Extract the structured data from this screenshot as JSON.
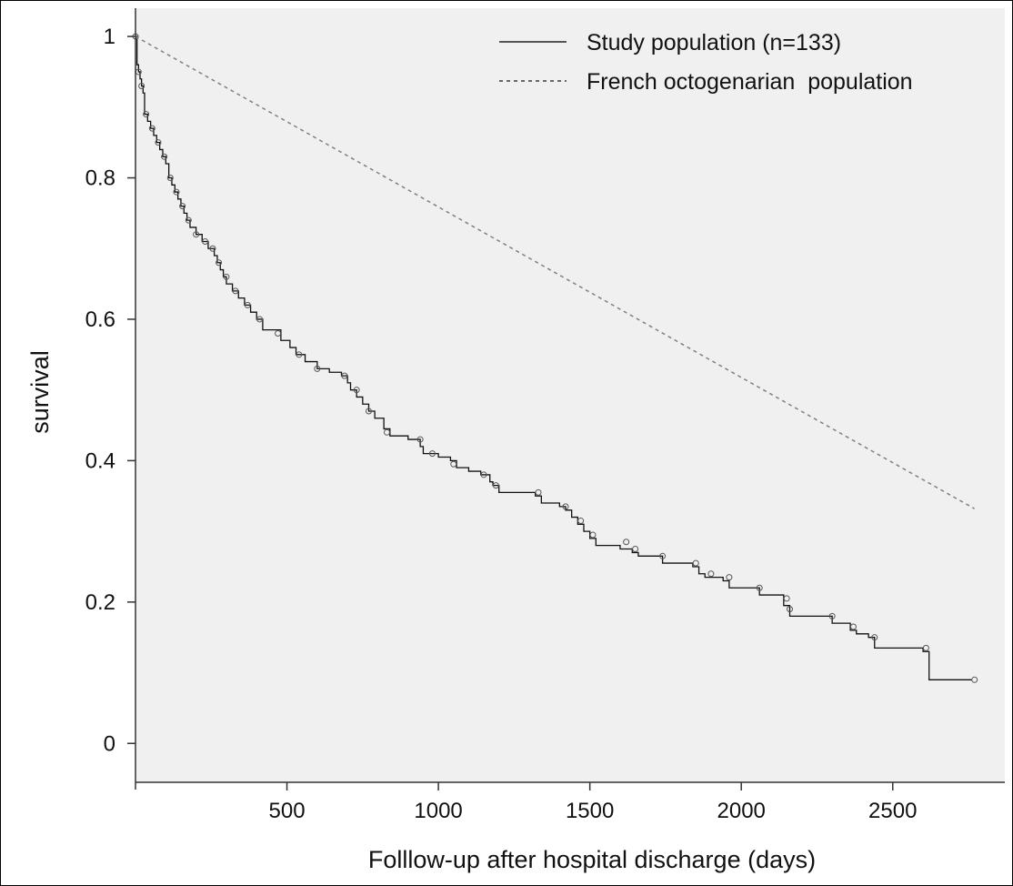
{
  "chart_data": {
    "type": "line",
    "title": "",
    "xlabel": "Folllow-up after hospital discharge (days)",
    "ylabel": "survival",
    "xlim": [
      0,
      2870
    ],
    "ylim": [
      -0.055,
      1.04
    ],
    "grid": false,
    "legend_position": "top-right",
    "x_ticks": [
      500,
      1000,
      1500,
      2000,
      2500
    ],
    "y_ticks": [
      0,
      0.2,
      0.4,
      0.6,
      0.8,
      1
    ],
    "x_tick_labels": [
      "500",
      "1000",
      "1500",
      "2000",
      "2500"
    ],
    "y_tick_labels": [
      "0",
      "0.2",
      "0.4",
      "0.6",
      "0.8",
      "1"
    ],
    "legend": [
      "Study population (n=133)",
      "French octogenarian  population"
    ],
    "series": [
      {
        "name": "Study population (n=133)",
        "style": "step",
        "color": "#111111",
        "x": [
          0,
          5,
          10,
          15,
          20,
          25,
          30,
          40,
          50,
          60,
          70,
          80,
          90,
          100,
          110,
          120,
          130,
          140,
          150,
          160,
          170,
          180,
          200,
          220,
          240,
          260,
          270,
          280,
          290,
          300,
          320,
          340,
          360,
          380,
          400,
          420,
          480,
          510,
          530,
          560,
          600,
          640,
          680,
          700,
          710,
          730,
          750,
          770,
          790,
          820,
          840,
          900,
          940,
          950,
          1000,
          1040,
          1060,
          1100,
          1140,
          1170,
          1180,
          1200,
          1320,
          1340,
          1400,
          1420,
          1440,
          1460,
          1480,
          1500,
          1520,
          1600,
          1640,
          1660,
          1740,
          1840,
          1860,
          1880,
          1940,
          1960,
          2060,
          2140,
          2160,
          2300,
          2360,
          2380,
          2420,
          2440,
          2600,
          2620,
          2760
        ],
        "y": [
          1.0,
          0.96,
          0.95,
          0.94,
          0.93,
          0.92,
          0.89,
          0.88,
          0.87,
          0.86,
          0.85,
          0.84,
          0.83,
          0.82,
          0.8,
          0.79,
          0.78,
          0.77,
          0.76,
          0.75,
          0.74,
          0.73,
          0.72,
          0.71,
          0.7,
          0.69,
          0.68,
          0.67,
          0.66,
          0.65,
          0.64,
          0.63,
          0.62,
          0.61,
          0.6,
          0.585,
          0.57,
          0.56,
          0.55,
          0.54,
          0.53,
          0.525,
          0.52,
          0.51,
          0.5,
          0.49,
          0.48,
          0.47,
          0.46,
          0.445,
          0.435,
          0.43,
          0.42,
          0.41,
          0.405,
          0.4,
          0.39,
          0.385,
          0.38,
          0.37,
          0.365,
          0.355,
          0.35,
          0.34,
          0.335,
          0.33,
          0.32,
          0.31,
          0.3,
          0.29,
          0.28,
          0.275,
          0.27,
          0.265,
          0.255,
          0.25,
          0.24,
          0.235,
          0.23,
          0.22,
          0.21,
          0.195,
          0.18,
          0.17,
          0.16,
          0.155,
          0.15,
          0.135,
          0.13,
          0.09,
          0.09
        ],
        "markers": [
          [
            0,
            1.0
          ],
          [
            10,
            0.95
          ],
          [
            20,
            0.93
          ],
          [
            35,
            0.89
          ],
          [
            55,
            0.87
          ],
          [
            75,
            0.85
          ],
          [
            95,
            0.83
          ],
          [
            115,
            0.8
          ],
          [
            135,
            0.78
          ],
          [
            155,
            0.76
          ],
          [
            175,
            0.74
          ],
          [
            200,
            0.72
          ],
          [
            230,
            0.71
          ],
          [
            255,
            0.7
          ],
          [
            275,
            0.68
          ],
          [
            300,
            0.66
          ],
          [
            330,
            0.64
          ],
          [
            370,
            0.62
          ],
          [
            410,
            0.6
          ],
          [
            470,
            0.58
          ],
          [
            540,
            0.55
          ],
          [
            600,
            0.53
          ],
          [
            690,
            0.52
          ],
          [
            730,
            0.5
          ],
          [
            770,
            0.47
          ],
          [
            830,
            0.44
          ],
          [
            940,
            0.43
          ],
          [
            980,
            0.41
          ],
          [
            1050,
            0.395
          ],
          [
            1150,
            0.38
          ],
          [
            1190,
            0.365
          ],
          [
            1330,
            0.355
          ],
          [
            1420,
            0.335
          ],
          [
            1470,
            0.315
          ],
          [
            1510,
            0.295
          ],
          [
            1620,
            0.285
          ],
          [
            1650,
            0.275
          ],
          [
            1740,
            0.265
          ],
          [
            1850,
            0.255
          ],
          [
            1900,
            0.24
          ],
          [
            1960,
            0.235
          ],
          [
            2060,
            0.22
          ],
          [
            2150,
            0.205
          ],
          [
            2160,
            0.19
          ],
          [
            2300,
            0.18
          ],
          [
            2370,
            0.165
          ],
          [
            2440,
            0.15
          ],
          [
            2610,
            0.135
          ],
          [
            2770,
            0.09
          ]
        ]
      },
      {
        "name": "French octogenarian  population",
        "style": "dashed",
        "color": "#808080",
        "x": [
          0,
          2770
        ],
        "y": [
          1.0,
          0.332
        ]
      }
    ]
  }
}
